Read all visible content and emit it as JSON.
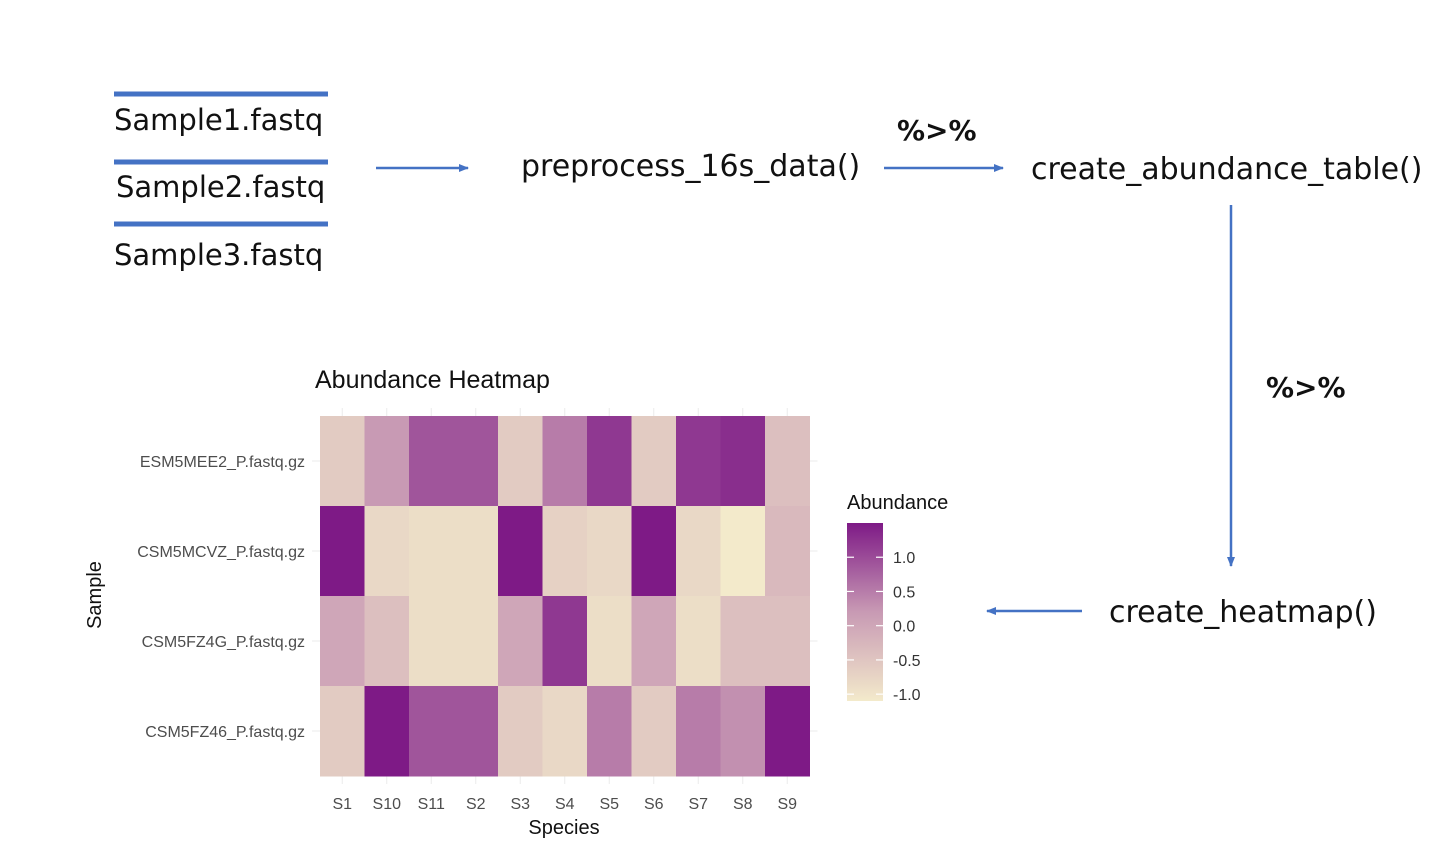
{
  "flow": {
    "files": [
      "Sample1.fastq",
      "Sample2.fastq",
      "Sample3.fastq"
    ],
    "steps": {
      "preprocess": "preprocess_16s_data()",
      "abundance": "create_abundance_table()",
      "heatmap": "create_heatmap()"
    },
    "pipe_label": "%>%",
    "colors": {
      "line": "#4472C4",
      "text": "#111111"
    }
  },
  "chart_data": {
    "type": "heatmap",
    "title": "Abundance Heatmap",
    "xlabel": "Species",
    "ylabel": "Sample",
    "x": [
      "S1",
      "S10",
      "S11",
      "S2",
      "S3",
      "S4",
      "S5",
      "S6",
      "S7",
      "S8",
      "S9"
    ],
    "y": [
      "ESM5MEE2_P.fastq.gz",
      "CSM5MCVZ_P.fastq.gz",
      "CSM5FZ4G_P.fastq.gz",
      "CSM5FZ46_P.fastq.gz"
    ],
    "values": [
      [
        -0.6,
        0.2,
        0.9,
        0.9,
        -0.6,
        0.5,
        1.2,
        -0.6,
        1.2,
        1.3,
        -0.4
      ],
      [
        1.5,
        -0.8,
        -0.9,
        -0.9,
        1.5,
        -0.7,
        -0.8,
        1.5,
        -0.8,
        -1.1,
        -0.3
      ],
      [
        0.0,
        -0.4,
        -0.9,
        -0.9,
        0.0,
        1.2,
        -0.9,
        0.0,
        -0.9,
        -0.4,
        -0.4
      ],
      [
        -0.6,
        1.5,
        0.9,
        0.9,
        -0.6,
        -0.8,
        0.5,
        -0.6,
        0.5,
        0.3,
        1.5
      ]
    ],
    "legend": {
      "title": "Abundance",
      "ticks": [
        1.0,
        0.5,
        0.0,
        -0.5,
        -1.0
      ],
      "tick_labels": [
        "1.0",
        "0.5",
        "0.0",
        "-0.5",
        "-1.0"
      ],
      "range": [
        -1.1,
        1.5
      ],
      "position": "right"
    },
    "colors": {
      "low": "#F3EACB",
      "mid": "#C89AB4",
      "high": "#7E1A86"
    },
    "grid": true
  }
}
